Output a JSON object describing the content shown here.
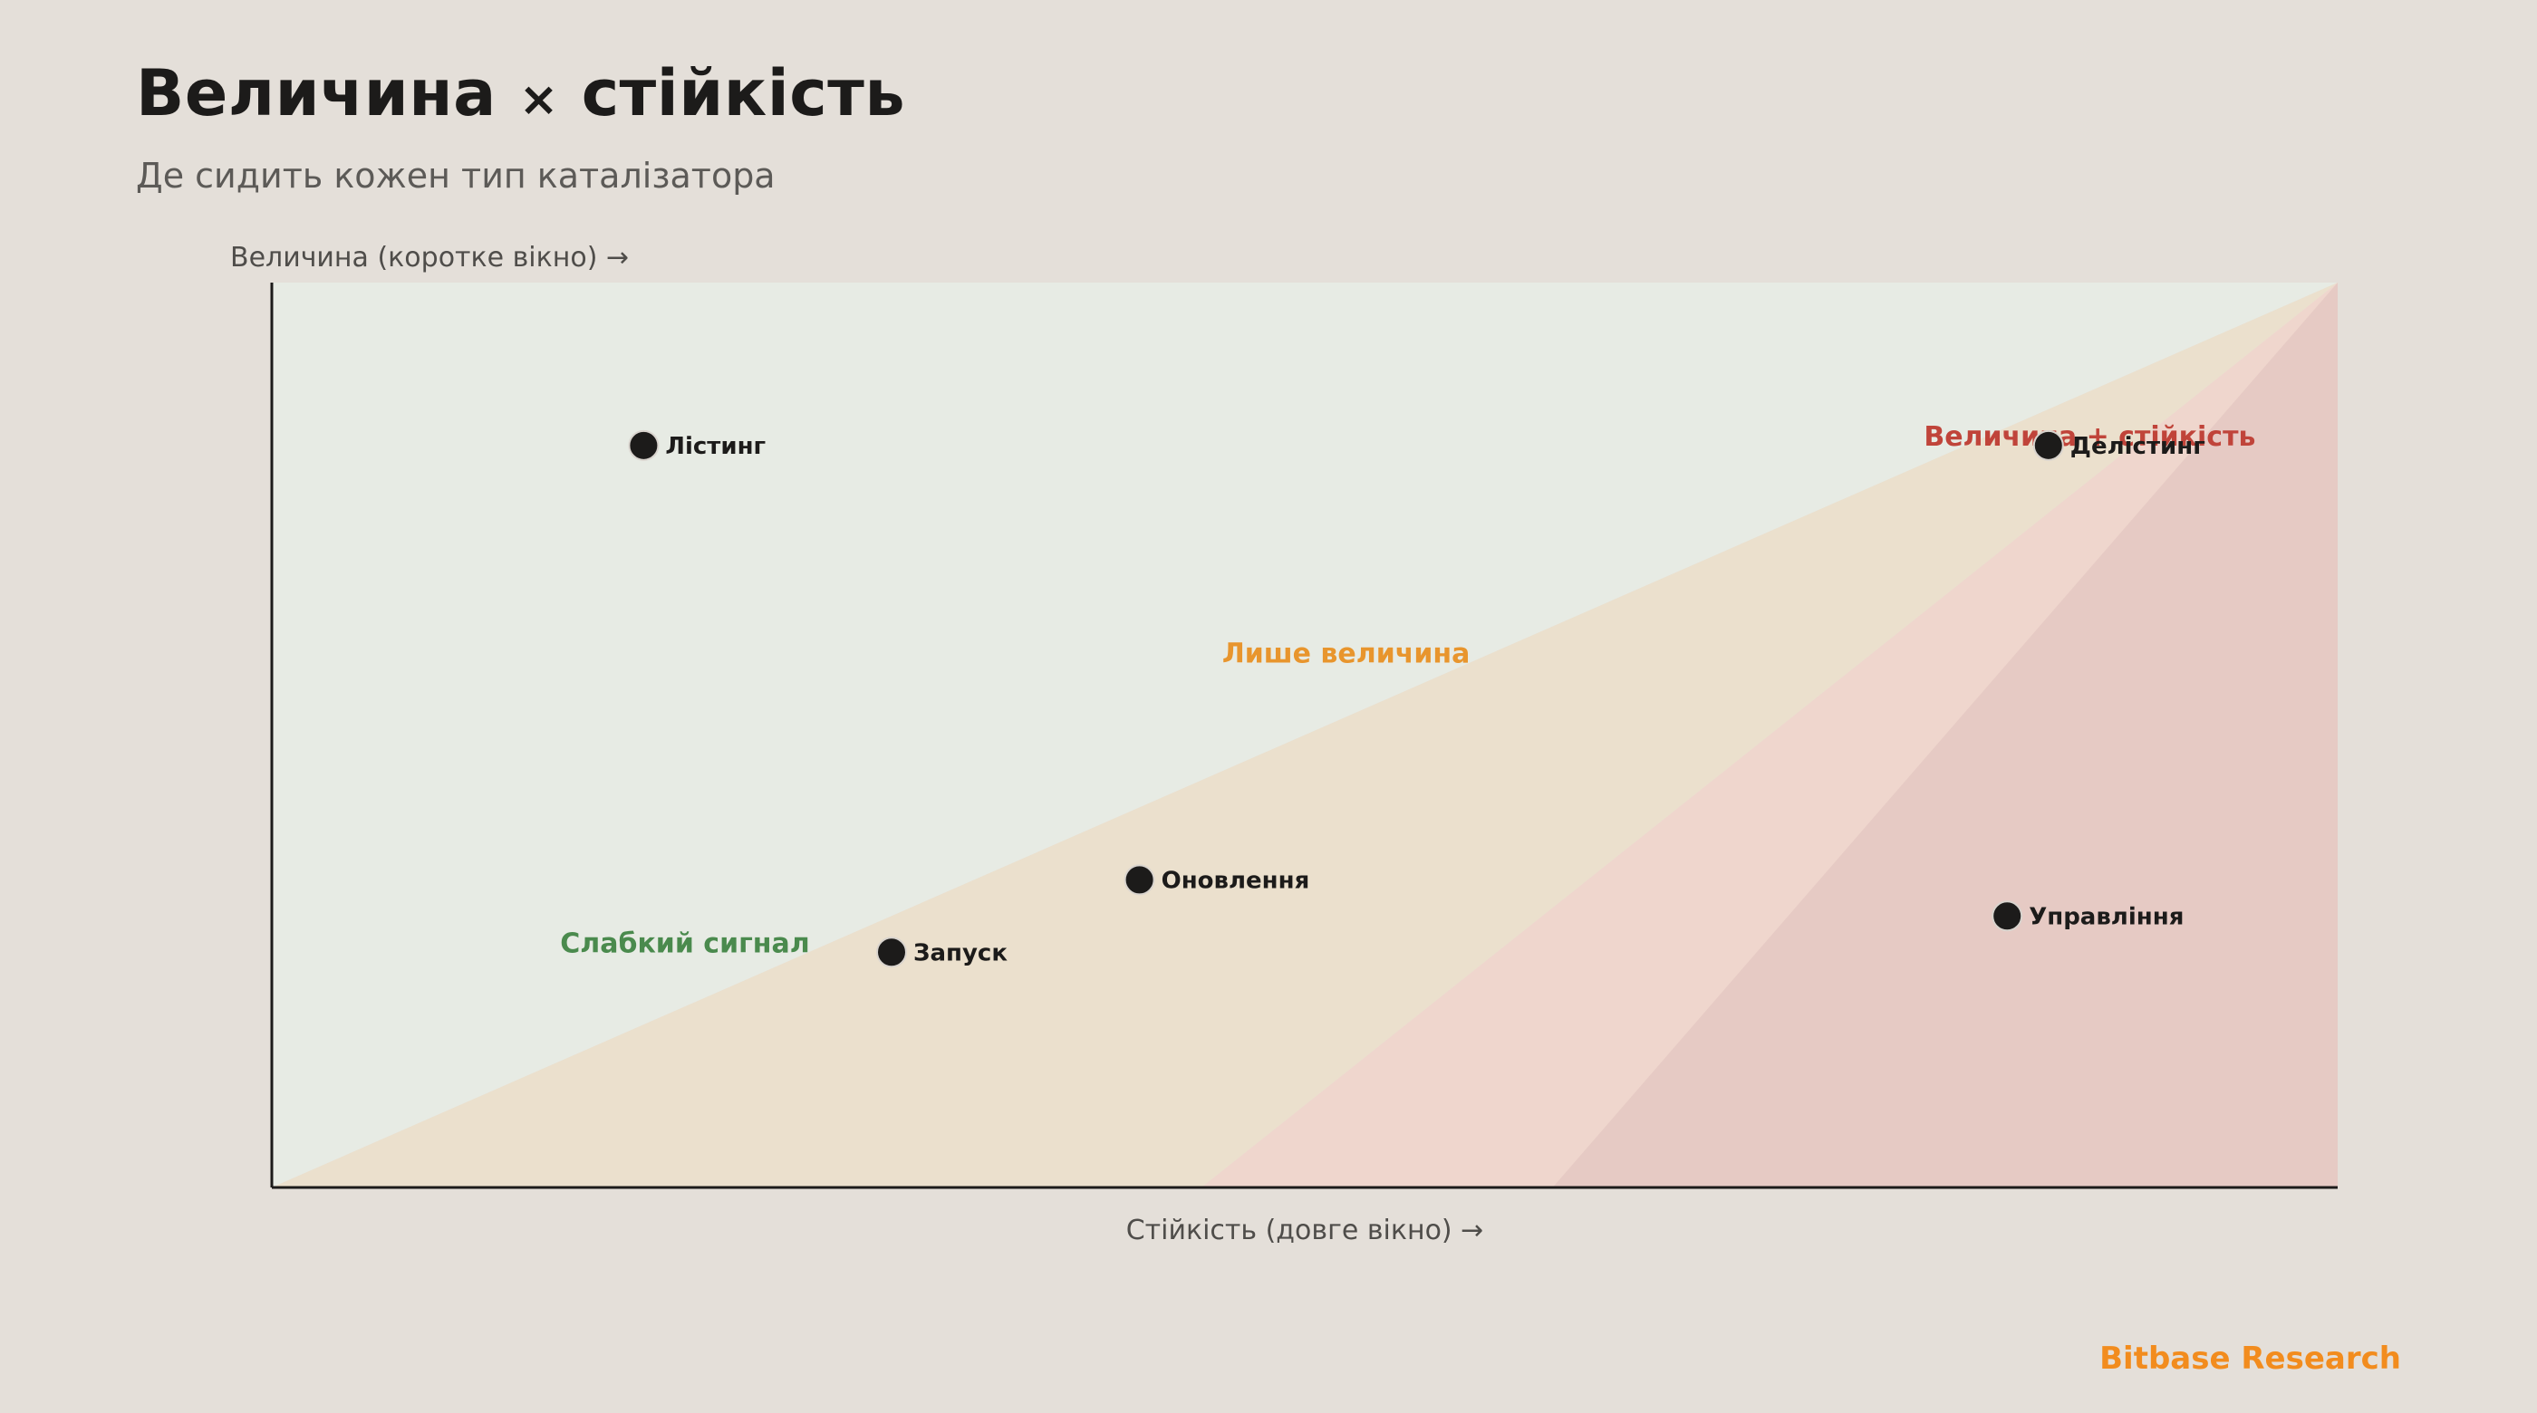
{
  "title_prefix": "Величина",
  "title_times": "×",
  "title_suffix": "стійкість",
  "subtitle": "Де сидить кожен тип каталізатора",
  "brand": "Bitbase Research",
  "colors": {
    "zone_weak": "#e7ebe4",
    "zone_magnitude": "#ebe0cd",
    "zone_both": "#efd6cd",
    "zone_both_deep": "#e6cac4",
    "label_weak": "#4a8a4d",
    "label_magnitude": "#e8952d",
    "label_both": "#c0443a",
    "point": "#1c1b1a",
    "axis": "#1c1b1a"
  },
  "chart_data": {
    "type": "scatter",
    "xlabel": "Стійкість (довге вікно) →",
    "ylabel": "Величина (коротке вікно) →",
    "xlim": [
      0,
      1
    ],
    "ylim": [
      0,
      1
    ],
    "grid": false,
    "zones": [
      {
        "name": "Слабкий сигнал",
        "color_key": "zone_weak",
        "label_color_key": "label_weak",
        "polygon": [
          [
            0,
            0
          ],
          [
            0,
            1
          ],
          [
            1,
            1
          ]
        ],
        "label_at": [
          0.2,
          0.26
        ]
      },
      {
        "name": "Лише величина",
        "color_key": "zone_magnitude",
        "label_color_key": "label_magnitude",
        "polygon": [
          [
            0,
            0
          ],
          [
            1,
            1
          ],
          [
            0.45,
            0
          ]
        ],
        "label_at": [
          0.52,
          0.58
        ]
      },
      {
        "name": "Величина + стійкість",
        "color_key": "zone_both",
        "label_color_key": "label_both",
        "polygon": [
          [
            0.45,
            0
          ],
          [
            1,
            1
          ],
          [
            1,
            0
          ]
        ],
        "label_at": [
          0.88,
          0.82
        ]
      },
      {
        "name": "",
        "color_key": "zone_both_deep",
        "label_color_key": "label_both",
        "polygon": [
          [
            0.62,
            0
          ],
          [
            1,
            1
          ],
          [
            1,
            0
          ]
        ],
        "label_at": null
      }
    ],
    "points": [
      {
        "label": "Лістинг",
        "x": 0.18,
        "y": 0.82
      },
      {
        "label": "Делістинг",
        "x": 0.86,
        "y": 0.82
      },
      {
        "label": "Оновлення",
        "x": 0.42,
        "y": 0.34
      },
      {
        "label": "Запуск",
        "x": 0.3,
        "y": 0.26
      },
      {
        "label": "Управління",
        "x": 0.84,
        "y": 0.3
      }
    ]
  }
}
